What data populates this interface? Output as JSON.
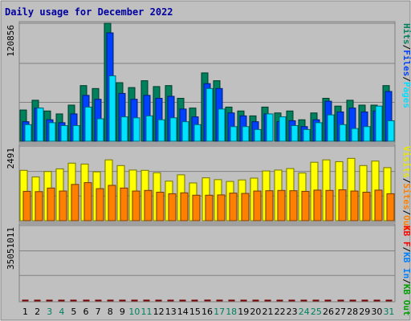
{
  "chart_data": {
    "type": "bar",
    "title": "Daily usage for December 2022",
    "days": [
      "1",
      "2",
      "3",
      "4",
      "5",
      "6",
      "7",
      "8",
      "9",
      "10",
      "11",
      "12",
      "13",
      "14",
      "15",
      "16",
      "17",
      "18",
      "19",
      "20",
      "21",
      "22",
      "23",
      "24",
      "25",
      "26",
      "27",
      "28",
      "29",
      "30",
      "31"
    ],
    "weekend_days": [
      "3",
      "4",
      "10",
      "11",
      "17",
      "18",
      "24",
      "25",
      "31"
    ],
    "panels": [
      {
        "ymax_label": "120856",
        "ymax": 120856,
        "axis_labels": [
          {
            "text": "Hits",
            "color": "#00805c"
          },
          {
            "text": "/",
            "color": "#000000"
          },
          {
            "text": "Files",
            "color": "#0040ff"
          },
          {
            "text": "/",
            "color": "#000000"
          },
          {
            "text": "Pages",
            "color": "#00e0ff"
          }
        ],
        "series": [
          {
            "name": "Hits",
            "color": "#00805c",
            "values": [
              32000,
              42000,
              31000,
              28000,
              37000,
              57000,
              54000,
              120856,
              60000,
              55000,
              62000,
              56000,
              57000,
              44000,
              34000,
              70000,
              62000,
              35000,
              31000,
              26000,
              35000,
              29000,
              31000,
              22000,
              29000,
              44000,
              36000,
              42000,
              37000,
              37000,
              57000
            ]
          },
          {
            "name": "Files",
            "color": "#0040ff",
            "values": [
              20000,
              34000,
              22000,
              19000,
              28000,
              47000,
              43000,
              111000,
              49000,
              43000,
              47000,
              44000,
              46000,
              33000,
              25000,
              59000,
              54000,
              29000,
              26000,
              20000,
              28000,
              20000,
              21000,
              15000,
              22000,
              41000,
              30000,
              34000,
              30000,
              31000,
              51000
            ]
          },
          {
            "name": "Pages",
            "color": "#00e0ff",
            "values": [
              17000,
              34000,
              19000,
              16000,
              16000,
              35000,
              23000,
              67000,
              25000,
              24000,
              26000,
              22000,
              24000,
              20000,
              17000,
              54000,
              33000,
              15000,
              15000,
              12000,
              28000,
              25000,
              16000,
              12000,
              19000,
              27000,
              17000,
              13000,
              15000,
              36000,
              21000
            ]
          }
        ]
      },
      {
        "ymax_label": "2491",
        "ymax": 2491,
        "axis_labels": [
          {
            "text": "Visits",
            "color": "#e6e600"
          },
          {
            "text": "/",
            "color": "#000000"
          },
          {
            "text": "Sites",
            "color": "#ff8000"
          },
          {
            "text": "/",
            "color": "#000000"
          },
          {
            "text": "Out",
            "color": "#ff8000"
          }
        ],
        "series": [
          {
            "name": "Visits",
            "color": "#ffff00",
            "values": [
              1680,
              1460,
              1640,
              1730,
              1920,
              1890,
              1630,
              2030,
              1840,
              1690,
              1680,
              1600,
              1320,
              1530,
              1260,
              1430,
              1370,
              1310,
              1360,
              1420,
              1660,
              1690,
              1740,
              1590,
              1950,
              2030,
              1970,
              2080,
              1840,
              1990,
              1770
            ]
          },
          {
            "name": "Sites",
            "color": "#ff8000",
            "values": [
              980,
              970,
              1090,
              990,
              1210,
              1270,
              1070,
              1180,
              1090,
              990,
              1010,
              950,
              900,
              930,
              850,
              850,
              860,
              920,
              910,
              990,
              1000,
              1010,
              1000,
              980,
              1020,
              1010,
              1030,
              990,
              950,
              1020,
              900
            ]
          }
        ]
      },
      {
        "ymax_label": "35051011",
        "ymax": 35051011,
        "axis_labels": [
          {
            "text": "KB F",
            "color": "#ff0000"
          },
          {
            "text": "/",
            "color": "#000000"
          },
          {
            "text": "KB In",
            "color": "#0080ff"
          },
          {
            "text": "/",
            "color": "#000000"
          },
          {
            "text": "KB Out",
            "color": "#00a000"
          }
        ],
        "series": [
          {
            "name": "KB F",
            "color": "#ff0000",
            "values": [
              14800,
              3500,
              3500,
              3200,
              8100,
              10500,
              11000,
              10500,
              11000,
              10000,
              11300,
              8000,
              6800,
              5300,
              8600,
              35051,
              20200,
              19600,
              3500,
              2100,
              3400,
              7200,
              3000,
              5500,
              5600,
              4700,
              7600,
              5600,
              8600,
              6600,
              7400
            ]
          }
        ]
      }
    ]
  }
}
